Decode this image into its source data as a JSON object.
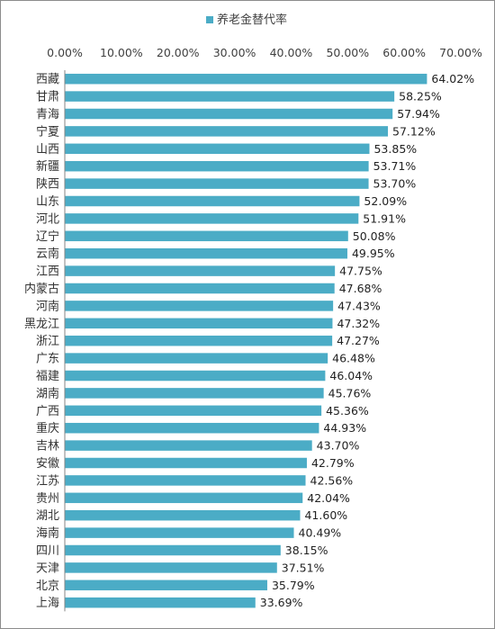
{
  "chart_data": {
    "type": "bar",
    "orientation": "horizontal",
    "legend": {
      "position": "top",
      "entries": [
        "养老金替代率"
      ]
    },
    "series": [
      {
        "name": "养老金替代率",
        "color": "#4bacc6",
        "values": [
          64.02,
          58.25,
          57.94,
          57.12,
          53.85,
          53.71,
          53.7,
          52.09,
          51.91,
          50.08,
          49.95,
          47.75,
          47.68,
          47.43,
          47.32,
          47.27,
          46.48,
          46.04,
          45.76,
          45.36,
          44.93,
          43.7,
          42.79,
          42.56,
          42.04,
          41.6,
          40.49,
          38.15,
          37.51,
          35.79,
          33.69
        ]
      }
    ],
    "categories": [
      "西藏",
      "甘肃",
      "青海",
      "宁夏",
      "山西",
      "新疆",
      "陕西",
      "山东",
      "河北",
      "辽宁",
      "云南",
      "江西",
      "内蒙古",
      "河南",
      "黑龙江",
      "浙江",
      "广东",
      "福建",
      "湖南",
      "广西",
      "重庆",
      "吉林",
      "安徽",
      "江苏",
      "贵州",
      "湖北",
      "海南",
      "四川",
      "天津",
      "北京",
      "上海"
    ],
    "data_labels": [
      "64.02%",
      "58.25%",
      "57.94%",
      "57.12%",
      "53.85%",
      "53.71%",
      "53.70%",
      "52.09%",
      "51.91%",
      "50.08%",
      "49.95%",
      "47.75%",
      "47.68%",
      "47.43%",
      "47.32%",
      "47.27%",
      "46.48%",
      "46.04%",
      "45.76%",
      "45.36%",
      "44.93%",
      "43.70%",
      "42.79%",
      "42.56%",
      "42.04%",
      "41.60%",
      "40.49%",
      "38.15%",
      "37.51%",
      "35.79%",
      "33.69%"
    ],
    "xaxis": {
      "position": "top",
      "range": [
        0,
        70
      ],
      "ticks": [
        0,
        10,
        20,
        30,
        40,
        50,
        60,
        70
      ],
      "tick_labels": [
        "0.00%",
        "10.00%",
        "20.00%",
        "30.00%",
        "40.00%",
        "50.00%",
        "60.00%",
        "70.00%"
      ]
    },
    "grid": false
  }
}
